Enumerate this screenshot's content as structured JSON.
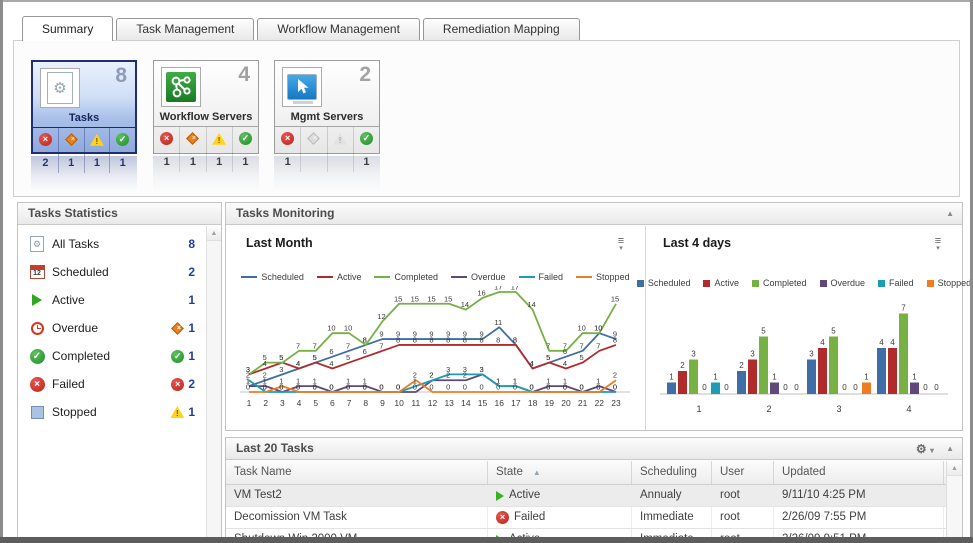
{
  "tabs": [
    {
      "label": "Summary",
      "active": true
    },
    {
      "label": "Task Management",
      "active": false
    },
    {
      "label": "Workflow Management",
      "active": false
    },
    {
      "label": "Remediation Mapping",
      "active": false
    }
  ],
  "cards": [
    {
      "label": "Tasks",
      "count": "8",
      "selected": true,
      "statuses": {
        "failed": "2",
        "overdue": "1",
        "warning": "1",
        "ok": "1"
      }
    },
    {
      "label": "Workflow Servers",
      "count": "4",
      "selected": false,
      "statuses": {
        "failed": "1",
        "overdue": "1",
        "warning": "1",
        "ok": "1"
      }
    },
    {
      "label": "Mgmt Servers",
      "count": "2",
      "selected": false,
      "statuses": {
        "failed": "1",
        "overdue": "",
        "warning": "",
        "ok": "1"
      }
    }
  ],
  "stats_panel": {
    "title": "Tasks Statistics",
    "calendar_label": "12",
    "items": [
      {
        "label": "All Tasks",
        "value": "8"
      },
      {
        "label": "Scheduled",
        "value": "2"
      },
      {
        "label": "Active",
        "value": "1"
      },
      {
        "label": "Overdue",
        "value": "1"
      },
      {
        "label": "Completed",
        "value": "1"
      },
      {
        "label": "Failed",
        "value": "2"
      },
      {
        "label": "Stopped",
        "value": "1"
      }
    ]
  },
  "monitoring_panel": {
    "title": "Tasks Monitoring"
  },
  "tasks_panel": {
    "title": "Last 20 Tasks"
  },
  "table": {
    "columns": [
      "Task Name",
      "State",
      "Scheduling",
      "User",
      "Updated"
    ],
    "sorted_column": "State",
    "rows": [
      {
        "name": "VM Test2",
        "state": "Active",
        "scheduling": "Annualy",
        "user": "root",
        "updated": "9/11/10 4:25 PM",
        "selected": true
      },
      {
        "name": "Decomission VM Task",
        "state": "Failed",
        "scheduling": "Immediate",
        "user": "root",
        "updated": "2/26/09 7:55 PM",
        "selected": false
      },
      {
        "name": "Shutdown Win 2000 VM",
        "state": "Active",
        "scheduling": "Immediate",
        "user": "root",
        "updated": "2/26/09 9:51 PM",
        "selected": false
      }
    ]
  },
  "chart_data": [
    {
      "type": "line",
      "title": "Last Month",
      "x": [
        1,
        2,
        3,
        4,
        5,
        6,
        7,
        8,
        9,
        10,
        11,
        12,
        13,
        14,
        15,
        16,
        17,
        18,
        19,
        20,
        21,
        22,
        23
      ],
      "ylim": [
        0,
        17
      ],
      "grid": false,
      "legend_position": "top",
      "series": [
        {
          "name": "Scheduled",
          "color": "#3f6ea6",
          "values": [
            1,
            2,
            3,
            4,
            5,
            6,
            7,
            8,
            9,
            9,
            9,
            9,
            9,
            9,
            9,
            11,
            8,
            4,
            5,
            6,
            7,
            10,
            9
          ]
        },
        {
          "name": "Active",
          "color": "#b02c2c",
          "values": [
            3,
            4,
            5,
            4,
            5,
            4,
            5,
            6,
            7,
            8,
            8,
            8,
            8,
            8,
            8,
            8,
            8,
            4,
            5,
            4,
            5,
            7,
            8
          ]
        },
        {
          "name": "Completed",
          "color": "#77b043",
          "values": [
            3,
            5,
            5,
            7,
            7,
            10,
            10,
            8,
            12,
            15,
            15,
            15,
            15,
            14,
            16,
            17,
            17,
            14,
            7,
            7,
            10,
            10,
            15
          ]
        },
        {
          "name": "Overdue",
          "color": "#5f497a",
          "values": [
            1,
            1,
            0,
            1,
            1,
            0,
            1,
            1,
            0,
            0,
            0,
            2,
            2,
            2,
            3,
            1,
            1,
            0,
            1,
            1,
            0,
            1,
            0
          ]
        },
        {
          "name": "Failed",
          "color": "#1d9db5",
          "values": [
            2,
            0,
            0,
            0,
            0,
            0,
            0,
            0,
            0,
            0,
            1,
            2,
            3,
            3,
            3,
            1,
            1,
            0,
            0,
            0,
            0,
            0,
            0
          ]
        },
        {
          "name": "Stopped",
          "color": "#ed7d23",
          "values": [
            0,
            0,
            1,
            0,
            0,
            0,
            0,
            0,
            0,
            0,
            2,
            0,
            0,
            0,
            0,
            0,
            0,
            0,
            0,
            0,
            0,
            0,
            2
          ]
        }
      ]
    },
    {
      "type": "bar",
      "title": "Last 4 days",
      "categories": [
        1,
        2,
        3,
        4
      ],
      "ylim": [
        0,
        7
      ],
      "grid": false,
      "legend_position": "top",
      "series": [
        {
          "name": "Scheduled",
          "color": "#3f6ea6",
          "values": [
            1,
            2,
            3,
            4
          ]
        },
        {
          "name": "Active",
          "color": "#b02c2c",
          "values": [
            2,
            3,
            4,
            4
          ]
        },
        {
          "name": "Completed",
          "color": "#77b043",
          "values": [
            3,
            5,
            5,
            7
          ]
        },
        {
          "name": "Overdue",
          "color": "#5f497a",
          "values": [
            0,
            1,
            0,
            1
          ]
        },
        {
          "name": "Failed",
          "color": "#1d9db5",
          "values": [
            1,
            0,
            0,
            0
          ]
        },
        {
          "name": "Stopped",
          "color": "#ed7d23",
          "values": [
            0,
            0,
            1,
            0
          ]
        }
      ]
    }
  ],
  "icons": {
    "collapse": "▲",
    "scroll_up": "▲",
    "sort_asc": "▲",
    "gear": "⚙",
    "caret_down": "▾",
    "menu_lines": "≡",
    "fail_glyph": "×",
    "ok_glyph": "✓",
    "warn_glyph": "!",
    "gear_small": "⚙"
  },
  "colors": {
    "accent_value": "#20409a",
    "selected_card_border": "#1e2e6e",
    "scheduled": "#3f6ea6",
    "active": "#b02c2c",
    "completed": "#77b043",
    "overdue": "#5f497a",
    "failed": "#1d9db5",
    "stopped": "#ed7d23"
  }
}
